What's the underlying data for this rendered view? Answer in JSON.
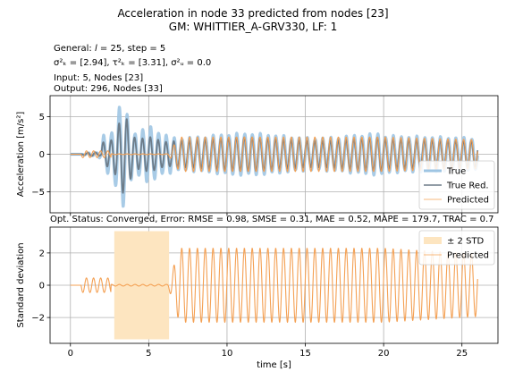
{
  "figure": {
    "title_line1": "Acceleration in node 33 predicted from nodes [23]",
    "title_line2": "GM: WHITTIER_A-GRV330, LF: 1",
    "info_general_prefix": "General: ",
    "info_general_l": "l",
    "info_general_rest": " = 25, step = 5",
    "info_sigma_text": "σ²ₖ = [2.94], τ²ₖ = [3.31], σ²ᵤ = 0.0",
    "info_input": "Input: 5, Nodes [23]",
    "info_output": "Output: 296, Nodes [33]",
    "opt_status": "Opt. Status: Converged, Error: RMSE = 0.98, SMSE = 0.31, MAE = 0.52, MAPE = 179.7, TRAC = 0.7"
  },
  "chart_data": [
    {
      "type": "line",
      "name": "top",
      "ylabel": "Acceleration [m/s²]",
      "xlim": [
        -1.3,
        27.3
      ],
      "ylim": [
        -7.8,
        7.8
      ],
      "xticks": [
        0,
        5,
        10,
        15,
        20,
        25
      ],
      "yticks": [
        -5,
        0,
        5
      ],
      "ytick_labels": [
        "−5",
        "0",
        "5"
      ],
      "grid": true,
      "legend_position": "lower-right",
      "series": [
        {
          "name": "True",
          "color": "#9ec5e3",
          "style": "thick"
        },
        {
          "name": "True Red.",
          "color": "#6d7c89",
          "style": "medium"
        },
        {
          "name": "Predicted",
          "color": "#f4a053",
          "style": "thin"
        }
      ],
      "signal": {
        "t_start": 0.7,
        "t_end": 26,
        "frequency_hz": 2.0,
        "true_peak": {
          "t": 3.4,
          "value": 7.3
        },
        "true_trough": {
          "t": 3.2,
          "value": -7.2
        },
        "steady_amplitude": 2.4,
        "predicted_amplitude_after_6s": 2.3
      }
    },
    {
      "type": "line",
      "name": "bottom",
      "xlabel": "time [s]",
      "ylabel": "Standard deviation",
      "xlim": [
        -1.3,
        27.3
      ],
      "ylim": [
        -3.6,
        3.6
      ],
      "xticks": [
        0,
        5,
        10,
        15,
        20,
        25
      ],
      "yticks": [
        -2,
        0,
        2
      ],
      "ytick_labels": [
        "−2",
        "0",
        "2"
      ],
      "grid": true,
      "legend_position": "top-right",
      "series": [
        {
          "name": "± 2 STD",
          "color": "#fde5c0",
          "style": "band",
          "band_x": [
            2.8,
            6.3
          ],
          "band_y": [
            -3.35,
            3.35
          ]
        },
        {
          "name": "Predicted",
          "color": "#f4a053",
          "style": "thin"
        }
      ]
    }
  ],
  "legend_top": [
    "True",
    "True Red.",
    "Predicted"
  ],
  "legend_bottom": [
    "± 2 STD",
    "Predicted"
  ],
  "colors": {
    "true": "#9ec5e3",
    "true_red": "#6d7c89",
    "predicted": "#f4a053",
    "band": "#fde5c0",
    "grid": "#b0b0b0"
  }
}
